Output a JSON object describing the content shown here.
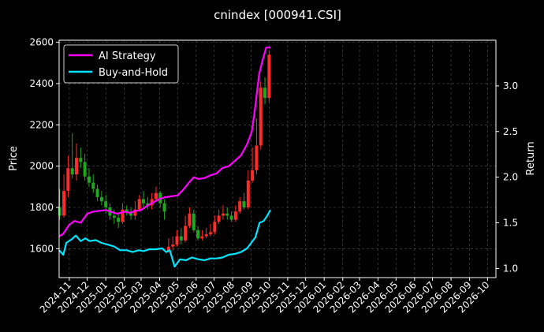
{
  "chart_data": {
    "type": "line",
    "title": "cnindex [000941.CSI]",
    "ylabel_left": "Price",
    "ylabel_right": "Return",
    "grid": true,
    "legend_position": "top-left",
    "background": "#000000",
    "x_ticks": [
      "2024-11",
      "2024-12",
      "2025-01",
      "2025-02",
      "2025-03",
      "2025-04",
      "2025-05",
      "2025-06",
      "2025-07",
      "2025-08",
      "2025-09",
      "2025-10",
      "2025-11",
      "2025-12",
      "2026-01",
      "2026-02",
      "2026-03",
      "2026-04",
      "2026-05",
      "2026-06",
      "2026-07",
      "2026-08",
      "2026-09",
      "2026-10"
    ],
    "x_range": [
      "2024-10-15",
      "2026-10-15"
    ],
    "y_left": {
      "range": [
        1460,
        2610
      ],
      "ticks": [
        1600,
        1800,
        2000,
        2200,
        2400,
        2600
      ]
    },
    "y_right": {
      "range": [
        0.9,
        3.5
      ],
      "ticks": [
        "1.0",
        "1.5",
        "2.0",
        "2.5",
        "3.0"
      ]
    },
    "candle_colors": {
      "up": "#ff2a2a",
      "down": "#1fa81f"
    },
    "price_candles": {
      "dates": [
        "2024-10-16",
        "2024-10-23",
        "2024-10-30",
        "2024-11-06",
        "2024-11-13",
        "2024-11-20",
        "2024-11-27",
        "2024-12-04",
        "2024-12-11",
        "2024-12-18",
        "2024-12-25",
        "2025-01-01",
        "2025-01-08",
        "2025-01-15",
        "2025-01-22",
        "2025-01-29",
        "2025-02-05",
        "2025-02-12",
        "2025-02-19",
        "2025-02-26",
        "2025-03-05",
        "2025-03-12",
        "2025-03-19",
        "2025-03-26",
        "2025-04-02",
        "2025-04-09",
        "2025-04-16",
        "2025-04-23",
        "2025-04-30",
        "2025-05-07",
        "2025-05-14",
        "2025-05-21",
        "2025-05-28",
        "2025-06-04",
        "2025-06-11",
        "2025-06-18",
        "2025-06-25",
        "2025-07-02",
        "2025-07-09",
        "2025-07-16",
        "2025-07-23",
        "2025-07-30",
        "2025-08-06",
        "2025-08-13",
        "2025-08-20",
        "2025-08-27",
        "2025-09-03",
        "2025-09-10",
        "2025-09-17",
        "2025-09-24",
        "2025-10-01"
      ],
      "open": [
        1800,
        1760,
        1880,
        1990,
        1960,
        2040,
        2020,
        1950,
        1920,
        1890,
        1850,
        1830,
        1800,
        1760,
        1750,
        1730,
        1790,
        1780,
        1760,
        1790,
        1840,
        1820,
        1810,
        1840,
        1870,
        1820,
        1590,
        1610,
        1620,
        1660,
        1640,
        1710,
        1770,
        1690,
        1650,
        1660,
        1670,
        1680,
        1730,
        1760,
        1770,
        1760,
        1740,
        1780,
        1830,
        1800,
        1930,
        1980,
        2100,
        2380,
        2330
      ],
      "close": [
        1760,
        1880,
        1990,
        1960,
        2040,
        2020,
        1950,
        1920,
        1890,
        1850,
        1830,
        1800,
        1760,
        1750,
        1730,
        1790,
        1780,
        1760,
        1790,
        1840,
        1820,
        1810,
        1840,
        1870,
        1820,
        1780,
        1610,
        1620,
        1660,
        1640,
        1710,
        1770,
        1690,
        1650,
        1660,
        1670,
        1680,
        1730,
        1760,
        1770,
        1760,
        1740,
        1780,
        1830,
        1800,
        1930,
        1980,
        2100,
        2380,
        2330,
        2540
      ],
      "high": [
        1890,
        1960,
        2050,
        2160,
        2110,
        2090,
        2060,
        1990,
        1960,
        1910,
        1880,
        1860,
        1820,
        1790,
        1770,
        1820,
        1810,
        1800,
        1830,
        1860,
        1880,
        1850,
        1870,
        1900,
        1880,
        1840,
        1650,
        1660,
        1690,
        1700,
        1760,
        1800,
        1790,
        1710,
        1690,
        1700,
        1720,
        1760,
        1790,
        1810,
        1800,
        1780,
        1810,
        1850,
        1870,
        1980,
        2090,
        2230,
        2410,
        2430,
        2560
      ],
      "low": [
        1740,
        1750,
        1850,
        1940,
        1930,
        1990,
        1930,
        1900,
        1870,
        1830,
        1810,
        1770,
        1740,
        1720,
        1700,
        1720,
        1760,
        1740,
        1740,
        1780,
        1800,
        1790,
        1790,
        1830,
        1800,
        1740,
        1580,
        1590,
        1610,
        1620,
        1630,
        1700,
        1680,
        1640,
        1640,
        1650,
        1660,
        1670,
        1720,
        1740,
        1740,
        1730,
        1730,
        1770,
        1790,
        1790,
        1920,
        1960,
        2080,
        2300,
        2310
      ]
    },
    "series": [
      {
        "name": "AI Strategy",
        "color": "#ff00ff",
        "axis": "right",
        "dates": [
          "2024-10-15",
          "2024-10-22",
          "2024-11-01",
          "2024-11-10",
          "2024-11-20",
          "2024-12-01",
          "2024-12-10",
          "2024-12-20",
          "2025-01-01",
          "2025-01-10",
          "2025-01-20",
          "2025-02-01",
          "2025-02-10",
          "2025-02-20",
          "2025-03-01",
          "2025-03-10",
          "2025-03-20",
          "2025-04-01",
          "2025-04-10",
          "2025-04-20",
          "2025-05-01",
          "2025-05-10",
          "2025-05-20",
          "2025-05-28",
          "2025-06-05",
          "2025-06-15",
          "2025-06-25",
          "2025-07-05",
          "2025-07-15",
          "2025-07-25",
          "2025-08-05",
          "2025-08-15",
          "2025-08-25",
          "2025-09-02",
          "2025-09-08",
          "2025-09-14",
          "2025-09-20",
          "2025-09-26",
          "2025-10-03"
        ],
        "values": [
          1.35,
          1.38,
          1.48,
          1.52,
          1.5,
          1.6,
          1.62,
          1.63,
          1.64,
          1.62,
          1.6,
          1.62,
          1.61,
          1.63,
          1.64,
          1.68,
          1.72,
          1.76,
          1.78,
          1.79,
          1.8,
          1.86,
          1.94,
          2.0,
          1.98,
          1.99,
          2.02,
          2.04,
          2.1,
          2.12,
          2.18,
          2.24,
          2.36,
          2.5,
          2.78,
          3.12,
          3.28,
          3.42,
          3.42
        ]
      },
      {
        "name": "Buy-and-Hold",
        "color": "#00e5ff",
        "axis": "right",
        "dates": [
          "2024-10-15",
          "2024-10-22",
          "2024-10-27",
          "2024-11-05",
          "2024-11-12",
          "2024-11-20",
          "2024-11-28",
          "2024-12-05",
          "2024-12-15",
          "2024-12-25",
          "2025-01-05",
          "2025-01-15",
          "2025-01-25",
          "2025-02-05",
          "2025-02-15",
          "2025-02-25",
          "2025-03-05",
          "2025-03-15",
          "2025-03-25",
          "2025-04-05",
          "2025-04-12",
          "2025-04-18",
          "2025-04-26",
          "2025-05-05",
          "2025-05-15",
          "2025-05-25",
          "2025-06-05",
          "2025-06-15",
          "2025-06-25",
          "2025-07-05",
          "2025-07-15",
          "2025-07-25",
          "2025-08-05",
          "2025-08-15",
          "2025-08-25",
          "2025-09-01",
          "2025-09-08",
          "2025-09-15",
          "2025-09-22",
          "2025-09-28",
          "2025-10-03"
        ],
        "values": [
          1.2,
          1.15,
          1.28,
          1.32,
          1.36,
          1.3,
          1.33,
          1.3,
          1.31,
          1.28,
          1.26,
          1.24,
          1.2,
          1.2,
          1.18,
          1.2,
          1.19,
          1.21,
          1.21,
          1.22,
          1.18,
          1.2,
          1.02,
          1.1,
          1.09,
          1.12,
          1.1,
          1.09,
          1.11,
          1.11,
          1.12,
          1.15,
          1.16,
          1.18,
          1.22,
          1.28,
          1.34,
          1.5,
          1.52,
          1.58,
          1.64
        ]
      }
    ]
  }
}
